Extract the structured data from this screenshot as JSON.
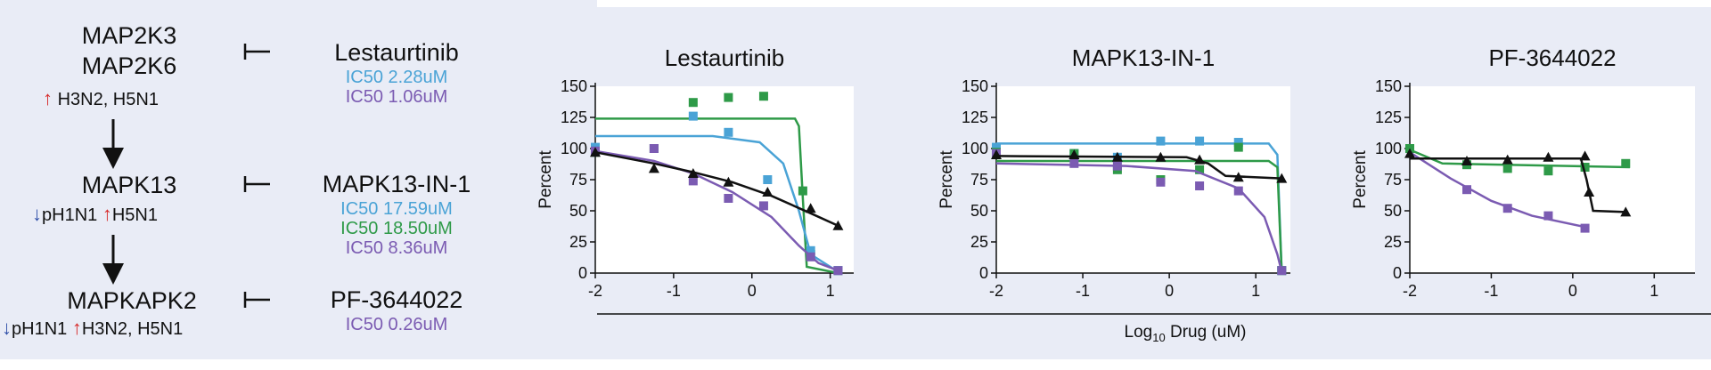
{
  "pathway": {
    "nodes": [
      {
        "lines": [
          "MAP2K3",
          "MAP2K6"
        ],
        "note": [
          {
            "arrow": "up",
            "text": "H3N2, H5N1"
          }
        ]
      },
      {
        "lines": [
          "MAPK13"
        ],
        "note": [
          {
            "arrow": "down",
            "text": "pH1N1"
          },
          {
            "arrow": "up",
            "text": "H5N1"
          }
        ]
      },
      {
        "lines": [
          "MAPKAPK2"
        ],
        "note": [
          {
            "arrow": "down",
            "text": "pH1N1"
          },
          {
            "arrow": "up",
            "text": "H3N2, H5N1"
          }
        ]
      }
    ],
    "drugs": [
      {
        "name": "Lestaurtinib",
        "ic50": [
          {
            "text": "IC50 2.28uM",
            "color": "#4aa3d6"
          },
          {
            "text": "IC50 1.06uM",
            "color": "#7b5bb2"
          }
        ]
      },
      {
        "name": "MAPK13-IN-1",
        "ic50": [
          {
            "text": "IC50 17.59uM",
            "color": "#4aa3d6"
          },
          {
            "text": "IC50 18.50uM",
            "color": "#2e9a48"
          },
          {
            "text": "IC50 8.36uM",
            "color": "#7b5bb2"
          }
        ]
      },
      {
        "name": "PF-3644022",
        "ic50": [
          {
            "text": "IC50 0.26uM",
            "color": "#7b5bb2"
          }
        ]
      }
    ]
  },
  "shared_xlabel": "Log10 Drug (uM)",
  "chart_data": [
    {
      "type": "scatter",
      "title": "Lestaurtinib",
      "ylabel": "Percent",
      "xlim": [
        -2,
        1.3
      ],
      "ylim": [
        0,
        150
      ],
      "xticks": [
        -2,
        -1,
        0,
        1
      ],
      "yticks": [
        0,
        25,
        50,
        75,
        100,
        125,
        150
      ],
      "series": [
        {
          "color": "#2e9a48",
          "marker": "square",
          "points": [
            [
              -2,
              97
            ],
            [
              -1.25,
              100
            ],
            [
              -0.75,
              137
            ],
            [
              -0.3,
              141
            ],
            [
              0.15,
              142
            ],
            [
              0.65,
              66
            ],
            [
              0.75,
              15
            ],
            [
              1.1,
              2
            ]
          ],
          "fit": [
            [
              -2,
              124
            ],
            [
              0.55,
              124
            ],
            [
              0.6,
              118
            ],
            [
              0.65,
              60
            ],
            [
              0.7,
              5
            ],
            [
              1.1,
              0
            ]
          ]
        },
        {
          "color": "#4aa3d6",
          "marker": "square",
          "points": [
            [
              -2,
              101
            ],
            [
              -0.75,
              126
            ],
            [
              -0.3,
              113
            ],
            [
              0.2,
              75
            ],
            [
              0.75,
              18
            ],
            [
              1.1,
              2
            ]
          ],
          "fit": [
            [
              -2,
              110
            ],
            [
              -0.5,
              110
            ],
            [
              0.1,
              105
            ],
            [
              0.4,
              88
            ],
            [
              0.6,
              50
            ],
            [
              0.75,
              15
            ],
            [
              1.1,
              1
            ]
          ]
        },
        {
          "color": "#7b5bb2",
          "marker": "square",
          "points": [
            [
              -2,
              98
            ],
            [
              -1.25,
              100
            ],
            [
              -0.75,
              74
            ],
            [
              -0.3,
              60
            ],
            [
              0.15,
              54
            ],
            [
              0.75,
              13
            ],
            [
              1.1,
              2
            ]
          ],
          "fit": [
            [
              -2,
              98
            ],
            [
              -1.25,
              90
            ],
            [
              -0.75,
              80
            ],
            [
              -0.25,
              65
            ],
            [
              0.25,
              45
            ],
            [
              0.6,
              22
            ],
            [
              0.85,
              8
            ],
            [
              1.1,
              2
            ]
          ]
        },
        {
          "color": "#111111",
          "marker": "triangle",
          "points": [
            [
              -2,
              97
            ],
            [
              -1.25,
              84
            ],
            [
              -0.75,
              80
            ],
            [
              -0.3,
              73
            ],
            [
              0.2,
              65
            ],
            [
              0.75,
              52
            ],
            [
              1.1,
              38
            ]
          ],
          "fit": [
            [
              -2,
              97
            ],
            [
              -1.25,
              88
            ],
            [
              -0.75,
              81
            ],
            [
              -0.25,
              73
            ],
            [
              0.25,
              62
            ],
            [
              0.75,
              48
            ],
            [
              1.1,
              38
            ]
          ]
        }
      ]
    },
    {
      "type": "scatter",
      "title": "MAPK13-IN-1",
      "ylabel": "Percent",
      "xlim": [
        -2,
        1.4
      ],
      "ylim": [
        0,
        150
      ],
      "xticks": [
        -2,
        -1,
        0,
        1
      ],
      "yticks": [
        0,
        25,
        50,
        75,
        100,
        125,
        150
      ],
      "series": [
        {
          "color": "#4aa3d6",
          "marker": "square",
          "points": [
            [
              -2,
              101
            ],
            [
              -1.1,
              96
            ],
            [
              -0.6,
              93
            ],
            [
              -0.1,
              106
            ],
            [
              0.35,
              106
            ],
            [
              0.8,
              105
            ],
            [
              1.3,
              2
            ]
          ],
          "fit": [
            [
              -2,
              104
            ],
            [
              1.15,
              104
            ],
            [
              1.25,
              95
            ],
            [
              1.3,
              0
            ]
          ]
        },
        {
          "color": "#2e9a48",
          "marker": "square",
          "points": [
            [
              -2,
              97
            ],
            [
              -1.1,
              96
            ],
            [
              -0.6,
              83
            ],
            [
              -0.1,
              75
            ],
            [
              0.35,
              83
            ],
            [
              0.8,
              101
            ],
            [
              1.3,
              2
            ]
          ],
          "fit": [
            [
              -2,
              90
            ],
            [
              1.15,
              90
            ],
            [
              1.25,
              85
            ],
            [
              1.3,
              0
            ]
          ]
        },
        {
          "color": "#7b5bb2",
          "marker": "square",
          "points": [
            [
              -2,
              96
            ],
            [
              -1.1,
              88
            ],
            [
              -0.6,
              86
            ],
            [
              -0.1,
              73
            ],
            [
              0.35,
              70
            ],
            [
              0.8,
              66
            ],
            [
              1.3,
              2
            ]
          ],
          "fit": [
            [
              -2,
              88
            ],
            [
              -0.5,
              86
            ],
            [
              0.3,
              82
            ],
            [
              0.8,
              68
            ],
            [
              1.1,
              45
            ],
            [
              1.25,
              15
            ],
            [
              1.3,
              1
            ]
          ]
        },
        {
          "color": "#111111",
          "marker": "triangle",
          "points": [
            [
              -2,
              95
            ],
            [
              -1.1,
              95
            ],
            [
              -0.6,
              93
            ],
            [
              -0.1,
              93
            ],
            [
              0.35,
              91
            ],
            [
              0.8,
              77
            ],
            [
              1.3,
              76
            ]
          ],
          "fit": [
            [
              -2,
              94
            ],
            [
              0.2,
              93
            ],
            [
              0.45,
              88
            ],
            [
              0.65,
              78
            ],
            [
              1.3,
              76
            ]
          ]
        }
      ]
    },
    {
      "type": "scatter",
      "title": "PF-3644022",
      "ylabel": "Percent",
      "xlim": [
        -2,
        1.5
      ],
      "ylim": [
        0,
        150
      ],
      "xticks": [
        -2,
        -1,
        0,
        1
      ],
      "yticks": [
        0,
        25,
        50,
        75,
        100,
        125,
        150
      ],
      "series": [
        {
          "color": "#2e9a48",
          "marker": "square",
          "points": [
            [
              -2,
              100
            ],
            [
              -1.3,
              87
            ],
            [
              -0.8,
              84
            ],
            [
              -0.3,
              82
            ],
            [
              0.15,
              85
            ],
            [
              0.65,
              88
            ]
          ],
          "fit": [
            [
              -2,
              99
            ],
            [
              -1.6,
              88
            ],
            [
              0.7,
              85
            ]
          ]
        },
        {
          "color": "#7b5bb2",
          "marker": "square",
          "points": [
            [
              -1.3,
              67
            ],
            [
              -0.8,
              52
            ],
            [
              -0.3,
              46
            ],
            [
              0.15,
              36
            ]
          ],
          "fit": [
            [
              -2,
              97
            ],
            [
              -1.5,
              76
            ],
            [
              -1.0,
              58
            ],
            [
              -0.5,
              46
            ],
            [
              0.15,
              37
            ]
          ]
        },
        {
          "color": "#111111",
          "marker": "triangle",
          "points": [
            [
              -2,
              96
            ],
            [
              -1.3,
              90
            ],
            [
              -0.8,
              91
            ],
            [
              -0.3,
              93
            ],
            [
              0.15,
              94
            ],
            [
              0.2,
              65
            ],
            [
              0.65,
              49
            ]
          ],
          "fit": [
            [
              -2,
              92
            ],
            [
              0.1,
              92
            ],
            [
              0.17,
              75
            ],
            [
              0.25,
              50
            ],
            [
              0.65,
              49
            ]
          ]
        }
      ]
    }
  ]
}
